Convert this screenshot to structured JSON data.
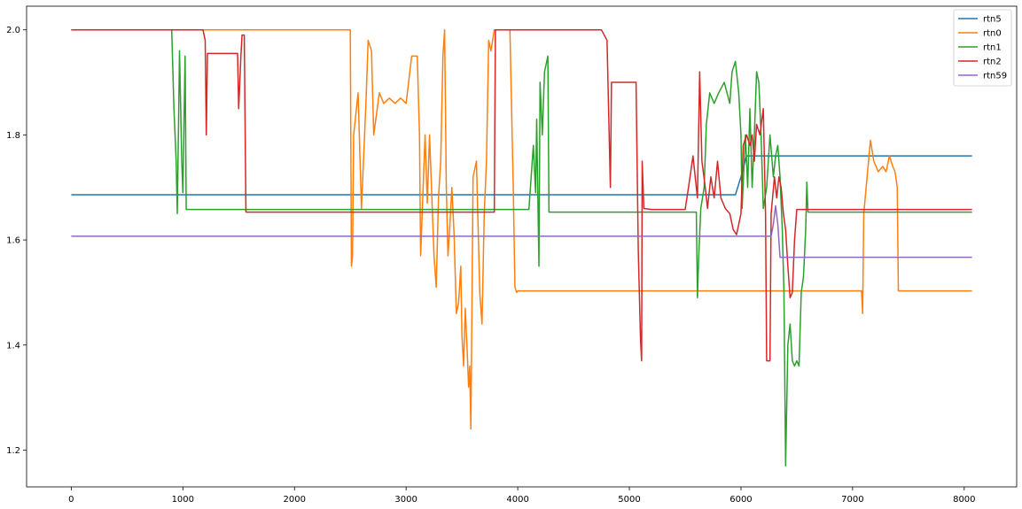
{
  "chart_data": {
    "type": "line",
    "title": "",
    "xlabel": "",
    "ylabel": "",
    "xlim": [
      -400,
      8470
    ],
    "ylim": [
      1.13,
      2.045
    ],
    "xticks": [
      0,
      1000,
      2000,
      3000,
      4000,
      5000,
      6000,
      7000,
      8000
    ],
    "yticks": [
      1.2,
      1.4,
      1.6,
      1.8,
      2.0
    ],
    "xtick_labels": [
      "0",
      "1000",
      "2000",
      "3000",
      "4000",
      "5000",
      "6000",
      "7000",
      "8000"
    ],
    "ytick_labels": [
      "1.2",
      "1.4",
      "1.6",
      "1.8",
      "2.0"
    ],
    "grid": false,
    "legend": "top-right",
    "series": [
      {
        "name": "rtn5",
        "color": "#1f77b4",
        "points": [
          [
            0,
            1.686
          ],
          [
            5950,
            1.686
          ],
          [
            6000,
            1.72
          ],
          [
            6050,
            1.76
          ],
          [
            8070,
            1.76
          ]
        ]
      },
      {
        "name": "rtn0",
        "color": "#ff7f0e",
        "points": [
          [
            0,
            2.0
          ],
          [
            2500,
            2.0
          ],
          [
            2510,
            1.55
          ],
          [
            2520,
            1.57
          ],
          [
            2530,
            1.8
          ],
          [
            2570,
            1.88
          ],
          [
            2600,
            1.66
          ],
          [
            2640,
            1.86
          ],
          [
            2660,
            1.98
          ],
          [
            2690,
            1.96
          ],
          [
            2710,
            1.8
          ],
          [
            2760,
            1.88
          ],
          [
            2800,
            1.86
          ],
          [
            2850,
            1.87
          ],
          [
            2900,
            1.86
          ],
          [
            2950,
            1.87
          ],
          [
            3000,
            1.86
          ],
          [
            3050,
            1.95
          ],
          [
            3100,
            1.95
          ],
          [
            3120,
            1.8
          ],
          [
            3130,
            1.57
          ],
          [
            3170,
            1.8
          ],
          [
            3190,
            1.67
          ],
          [
            3210,
            1.8
          ],
          [
            3250,
            1.57
          ],
          [
            3270,
            1.51
          ],
          [
            3290,
            1.68
          ],
          [
            3310,
            1.75
          ],
          [
            3330,
            1.95
          ],
          [
            3345,
            2.0
          ],
          [
            3360,
            1.7
          ],
          [
            3375,
            1.57
          ],
          [
            3390,
            1.62
          ],
          [
            3410,
            1.7
          ],
          [
            3430,
            1.61
          ],
          [
            3450,
            1.46
          ],
          [
            3470,
            1.48
          ],
          [
            3490,
            1.55
          ],
          [
            3500,
            1.42
          ],
          [
            3515,
            1.36
          ],
          [
            3530,
            1.47
          ],
          [
            3545,
            1.4
          ],
          [
            3560,
            1.32
          ],
          [
            3570,
            1.36
          ],
          [
            3580,
            1.24
          ],
          [
            3600,
            1.72
          ],
          [
            3630,
            1.75
          ],
          [
            3660,
            1.5
          ],
          [
            3680,
            1.44
          ],
          [
            3700,
            1.65
          ],
          [
            3720,
            1.75
          ],
          [
            3740,
            1.98
          ],
          [
            3760,
            1.96
          ],
          [
            3790,
            2.0
          ],
          [
            3930,
            2.0
          ],
          [
            3960,
            1.7
          ],
          [
            3975,
            1.51
          ],
          [
            3990,
            1.5
          ],
          [
            4000,
            1.503
          ],
          [
            7080,
            1.503
          ],
          [
            7090,
            1.46
          ],
          [
            7100,
            1.65
          ],
          [
            7130,
            1.72
          ],
          [
            7160,
            1.79
          ],
          [
            7190,
            1.75
          ],
          [
            7230,
            1.73
          ],
          [
            7270,
            1.74
          ],
          [
            7300,
            1.73
          ],
          [
            7330,
            1.76
          ],
          [
            7360,
            1.74
          ],
          [
            7380,
            1.73
          ],
          [
            7400,
            1.7
          ],
          [
            7410,
            1.503
          ],
          [
            8070,
            1.503
          ]
        ]
      },
      {
        "name": "rtn1",
        "color": "#2ca02c",
        "points": [
          [
            0,
            2.0
          ],
          [
            900,
            2.0
          ],
          [
            920,
            1.85
          ],
          [
            940,
            1.75
          ],
          [
            950,
            1.65
          ],
          [
            960,
            1.8
          ],
          [
            970,
            1.96
          ],
          [
            990,
            1.75
          ],
          [
            1000,
            1.69
          ],
          [
            1020,
            1.95
          ],
          [
            1030,
            1.658
          ],
          [
            3800,
            1.658
          ],
          [
            4100,
            1.658
          ],
          [
            4140,
            1.78
          ],
          [
            4160,
            1.69
          ],
          [
            4170,
            1.83
          ],
          [
            4190,
            1.55
          ],
          [
            4200,
            1.9
          ],
          [
            4220,
            1.8
          ],
          [
            4240,
            1.92
          ],
          [
            4270,
            1.95
          ],
          [
            4280,
            1.653
          ],
          [
            5600,
            1.653
          ],
          [
            5610,
            1.49
          ],
          [
            5620,
            1.56
          ],
          [
            5640,
            1.66
          ],
          [
            5670,
            1.7
          ],
          [
            5690,
            1.82
          ],
          [
            5720,
            1.88
          ],
          [
            5760,
            1.86
          ],
          [
            5800,
            1.88
          ],
          [
            5850,
            1.9
          ],
          [
            5900,
            1.86
          ],
          [
            5920,
            1.92
          ],
          [
            5950,
            1.94
          ],
          [
            5980,
            1.88
          ],
          [
            6000,
            1.8
          ],
          [
            6010,
            1.66
          ],
          [
            6040,
            1.8
          ],
          [
            6060,
            1.7
          ],
          [
            6080,
            1.85
          ],
          [
            6100,
            1.7
          ],
          [
            6120,
            1.8
          ],
          [
            6140,
            1.92
          ],
          [
            6160,
            1.9
          ],
          [
            6180,
            1.8
          ],
          [
            6200,
            1.66
          ],
          [
            6230,
            1.7
          ],
          [
            6260,
            1.8
          ],
          [
            6290,
            1.72
          ],
          [
            6310,
            1.76
          ],
          [
            6330,
            1.78
          ],
          [
            6350,
            1.72
          ],
          [
            6370,
            1.62
          ],
          [
            6385,
            1.5
          ],
          [
            6400,
            1.17
          ],
          [
            6420,
            1.4
          ],
          [
            6440,
            1.44
          ],
          [
            6460,
            1.37
          ],
          [
            6480,
            1.36
          ],
          [
            6500,
            1.37
          ],
          [
            6520,
            1.36
          ],
          [
            6540,
            1.5
          ],
          [
            6560,
            1.53
          ],
          [
            6580,
            1.62
          ],
          [
            6590,
            1.71
          ],
          [
            6600,
            1.653
          ],
          [
            8070,
            1.653
          ]
        ]
      },
      {
        "name": "rtn2",
        "color": "#d62728",
        "points": [
          [
            0,
            2.0
          ],
          [
            1180,
            2.0
          ],
          [
            1200,
            1.98
          ],
          [
            1210,
            1.8
          ],
          [
            1220,
            1.955
          ],
          [
            1490,
            1.955
          ],
          [
            1500,
            1.85
          ],
          [
            1510,
            1.9
          ],
          [
            1520,
            1.95
          ],
          [
            1530,
            1.99
          ],
          [
            1550,
            1.99
          ],
          [
            1565,
            1.653
          ],
          [
            3790,
            1.653
          ],
          [
            3800,
            2.0
          ],
          [
            4750,
            2.0
          ],
          [
            4800,
            1.98
          ],
          [
            4830,
            1.7
          ],
          [
            4840,
            1.9
          ],
          [
            5060,
            1.9
          ],
          [
            5080,
            1.58
          ],
          [
            5100,
            1.41
          ],
          [
            5110,
            1.37
          ],
          [
            5115,
            1.75
          ],
          [
            5130,
            1.66
          ],
          [
            5200,
            1.658
          ],
          [
            5500,
            1.658
          ],
          [
            5530,
            1.7
          ],
          [
            5570,
            1.76
          ],
          [
            5590,
            1.72
          ],
          [
            5610,
            1.68
          ],
          [
            5630,
            1.92
          ],
          [
            5650,
            1.75
          ],
          [
            5680,
            1.7
          ],
          [
            5700,
            1.66
          ],
          [
            5730,
            1.72
          ],
          [
            5760,
            1.68
          ],
          [
            5790,
            1.75
          ],
          [
            5820,
            1.68
          ],
          [
            5860,
            1.66
          ],
          [
            5900,
            1.65
          ],
          [
            5930,
            1.62
          ],
          [
            5960,
            1.61
          ],
          [
            6000,
            1.65
          ],
          [
            6020,
            1.78
          ],
          [
            6050,
            1.8
          ],
          [
            6080,
            1.78
          ],
          [
            6100,
            1.8
          ],
          [
            6120,
            1.75
          ],
          [
            6140,
            1.82
          ],
          [
            6170,
            1.8
          ],
          [
            6200,
            1.85
          ],
          [
            6220,
            1.65
          ],
          [
            6230,
            1.37
          ],
          [
            6260,
            1.37
          ],
          [
            6270,
            1.65
          ],
          [
            6300,
            1.72
          ],
          [
            6320,
            1.68
          ],
          [
            6340,
            1.72
          ],
          [
            6360,
            1.7
          ],
          [
            6380,
            1.65
          ],
          [
            6400,
            1.62
          ],
          [
            6420,
            1.55
          ],
          [
            6440,
            1.49
          ],
          [
            6460,
            1.5
          ],
          [
            6480,
            1.6
          ],
          [
            6500,
            1.658
          ],
          [
            8070,
            1.658
          ]
        ]
      },
      {
        "name": "rtn59",
        "color": "#9467bd",
        "points": [
          [
            0,
            1.607
          ],
          [
            6270,
            1.607
          ],
          [
            6290,
            1.63
          ],
          [
            6310,
            1.665
          ],
          [
            6330,
            1.63
          ],
          [
            6350,
            1.567
          ],
          [
            8070,
            1.567
          ]
        ]
      }
    ]
  }
}
